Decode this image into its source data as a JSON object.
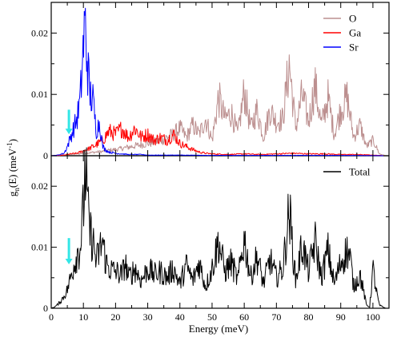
{
  "chart_data": [
    {
      "type": "line",
      "panel": "top",
      "xlim": [
        0,
        105
      ],
      "ylim": [
        0,
        0.025
      ],
      "xticks": [
        0,
        10,
        20,
        30,
        40,
        50,
        60,
        70,
        80,
        90,
        100
      ],
      "yticks": [
        0,
        0.01,
        0.02
      ],
      "ytick_labels": [
        "0",
        "0.01",
        "0.02"
      ],
      "legend_position": "top-right",
      "arrow_annotation": {
        "x": 5.5,
        "y_top": 0.0075,
        "y_bottom": 0.0035,
        "color": "#33e6e6"
      },
      "series": [
        {
          "name": "O",
          "color": "#bc8f8f",
          "x": [
            0,
            2,
            4,
            6,
            8,
            10,
            12,
            14,
            16,
            18,
            20,
            22,
            24,
            26,
            28,
            30,
            32,
            34,
            36,
            38,
            40,
            42,
            44,
            46,
            48,
            50,
            52,
            54,
            56,
            58,
            60,
            62,
            64,
            66,
            68,
            70,
            72,
            74,
            76,
            78,
            80,
            82,
            84,
            86,
            88,
            90,
            92,
            94,
            96,
            98,
            100,
            101,
            102,
            104
          ],
          "y": [
            0,
            5e-05,
            0.0001,
            0.0002,
            0.0003,
            0.0004,
            0.0005,
            0.0006,
            0.0007,
            0.0009,
            0.001,
            0.0012,
            0.0014,
            0.0016,
            0.0018,
            0.002,
            0.0022,
            0.0025,
            0.003,
            0.0035,
            0.0045,
            0.003,
            0.005,
            0.0035,
            0.006,
            0.0025,
            0.0095,
            0.006,
            0.007,
            0.0035,
            0.0105,
            0.0045,
            0.0075,
            0.003,
            0.0075,
            0.0055,
            0.006,
            0.015,
            0.0045,
            0.01,
            0.0055,
            0.0115,
            0.005,
            0.0095,
            0.0035,
            0.0075,
            0.0095,
            0.003,
            0.005,
            0.0015,
            0.0025,
            0.0015,
            0.0003,
            0
          ]
        },
        {
          "name": "Ga",
          "color": "#ff0000",
          "x": [
            0,
            2,
            4,
            6,
            8,
            10,
            12,
            14,
            16,
            18,
            20,
            22,
            24,
            26,
            28,
            30,
            32,
            34,
            36,
            38,
            40,
            42,
            44,
            46,
            48,
            50,
            55,
            60,
            65,
            70,
            75,
            80,
            85,
            90,
            95,
            100,
            104
          ],
          "y": [
            0,
            5e-05,
            0.0001,
            0.0003,
            0.0004,
            0.0008,
            0.0012,
            0.0018,
            0.0025,
            0.004,
            0.0035,
            0.0045,
            0.003,
            0.0045,
            0.003,
            0.0035,
            0.0025,
            0.003,
            0.0025,
            0.0035,
            0.002,
            0.0015,
            0.001,
            0.0006,
            0.0004,
            0.0003,
            0.0002,
            0.0003,
            0.0002,
            0.0003,
            0.0004,
            0.0003,
            0.0003,
            0.0002,
            0.0002,
            0.0001,
            0
          ]
        },
        {
          "name": "Sr",
          "color": "#0000ff",
          "x": [
            0,
            2,
            4,
            5,
            6,
            7,
            8,
            9,
            10,
            10.5,
            11,
            11.5,
            12,
            13,
            14,
            15,
            16,
            17,
            18,
            20,
            22,
            24,
            26,
            28,
            30,
            35,
            40,
            50,
            60,
            70,
            80,
            90,
            100,
            104
          ],
          "y": [
            0,
            0.0001,
            0.0004,
            0.0015,
            0.003,
            0.0045,
            0.006,
            0.009,
            0.018,
            0.0215,
            0.017,
            0.0135,
            0.01,
            0.009,
            0.004,
            0.0055,
            0.0015,
            0.0009,
            0.0006,
            0.0004,
            0.0003,
            0.0002,
            0.0002,
            0.0002,
            0.0001,
            0.0001,
            0.0001,
            5e-05,
            5e-05,
            5e-05,
            5e-05,
            5e-05,
            2e-05,
            0
          ]
        }
      ]
    },
    {
      "type": "line",
      "panel": "bottom",
      "xlabel": "Energy (meV)",
      "ylabel_main": "g",
      "ylabel_sub": "n",
      "ylabel_mid": "(E) (meV",
      "ylabel_sup": "-1",
      "ylabel_end": ")",
      "xlim": [
        0,
        105
      ],
      "ylim": [
        0,
        0.025
      ],
      "xticks": [
        0,
        10,
        20,
        30,
        40,
        50,
        60,
        70,
        80,
        90,
        100
      ],
      "xtick_labels": [
        "0",
        "10",
        "20",
        "30",
        "40",
        "50",
        "60",
        "70",
        "80",
        "90",
        "100"
      ],
      "yticks": [
        0,
        0.01,
        0.02
      ],
      "ytick_labels": [
        "0",
        "0.01",
        "0.02"
      ],
      "legend_position": "top-right",
      "arrow_annotation": {
        "x": 5.5,
        "y_top": 0.0115,
        "y_bottom": 0.0072,
        "color": "#33e6e6"
      },
      "series": [
        {
          "name": "Total",
          "color": "#000000",
          "x": [
            0,
            1,
            2,
            3,
            4,
            5,
            6,
            7,
            8,
            9,
            10,
            10.5,
            11,
            11.5,
            12,
            13,
            14,
            15,
            16,
            17,
            18,
            20,
            22,
            23,
            24,
            26,
            28,
            30,
            32,
            34,
            36,
            38,
            40,
            42,
            44,
            46,
            48,
            50,
            52,
            54,
            56,
            58,
            60,
            62,
            64,
            66,
            68,
            70,
            72,
            74,
            76,
            78,
            80,
            82,
            84,
            86,
            88,
            90,
            92,
            93,
            94,
            96,
            98,
            99,
            100,
            101,
            102,
            104
          ],
          "y": [
            0,
            0.0002,
            0.0006,
            0.0012,
            0.002,
            0.003,
            0.005,
            0.007,
            0.009,
            0.01,
            0.016,
            0.023,
            0.02,
            0.015,
            0.0125,
            0.011,
            0.0075,
            0.0095,
            0.011,
            0.0075,
            0.0065,
            0.006,
            0.0055,
            0.0075,
            0.005,
            0.0065,
            0.0045,
            0.0065,
            0.0055,
            0.006,
            0.005,
            0.0065,
            0.004,
            0.007,
            0.0045,
            0.0075,
            0.0035,
            0.0065,
            0.011,
            0.006,
            0.0075,
            0.0045,
            0.0115,
            0.005,
            0.0085,
            0.004,
            0.008,
            0.005,
            0.0065,
            0.016,
            0.0045,
            0.0105,
            0.006,
            0.011,
            0.005,
            0.0095,
            0.004,
            0.0075,
            0.0095,
            0.008,
            0.0035,
            0.0055,
            0.0005,
            0.0002,
            0.0065,
            0.003,
            0.0005,
            0
          ]
        }
      ]
    }
  ]
}
